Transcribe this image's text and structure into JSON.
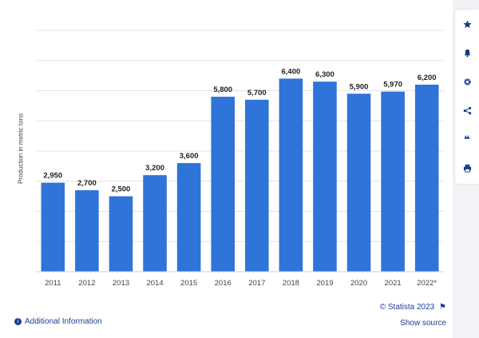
{
  "chart_data": {
    "type": "bar",
    "categories": [
      "2011",
      "2012",
      "2013",
      "2014",
      "2015",
      "2016",
      "2017",
      "2018",
      "2019",
      "2020",
      "2021",
      "2022*"
    ],
    "values": [
      2950,
      2700,
      2500,
      3200,
      3600,
      5800,
      5700,
      6400,
      6300,
      5900,
      5970,
      6200
    ],
    "value_labels": [
      "2,950",
      "2,700",
      "2,500",
      "3,200",
      "3,600",
      "5,800",
      "5,700",
      "6,400",
      "6,300",
      "5,900",
      "5,970",
      "6,200"
    ],
    "ylabel": "Production in metric tons",
    "ylim": [
      0,
      8000
    ],
    "grid": true,
    "bar_color": "#2f74d8"
  },
  "footer": {
    "credit": "© Statista 2023",
    "additional_info": "Additional Information",
    "show_source": "Show source"
  },
  "sidebar": {
    "buttons": [
      "star-icon",
      "bell-icon",
      "gear-icon",
      "share-icon",
      "quote-icon",
      "print-icon"
    ]
  }
}
